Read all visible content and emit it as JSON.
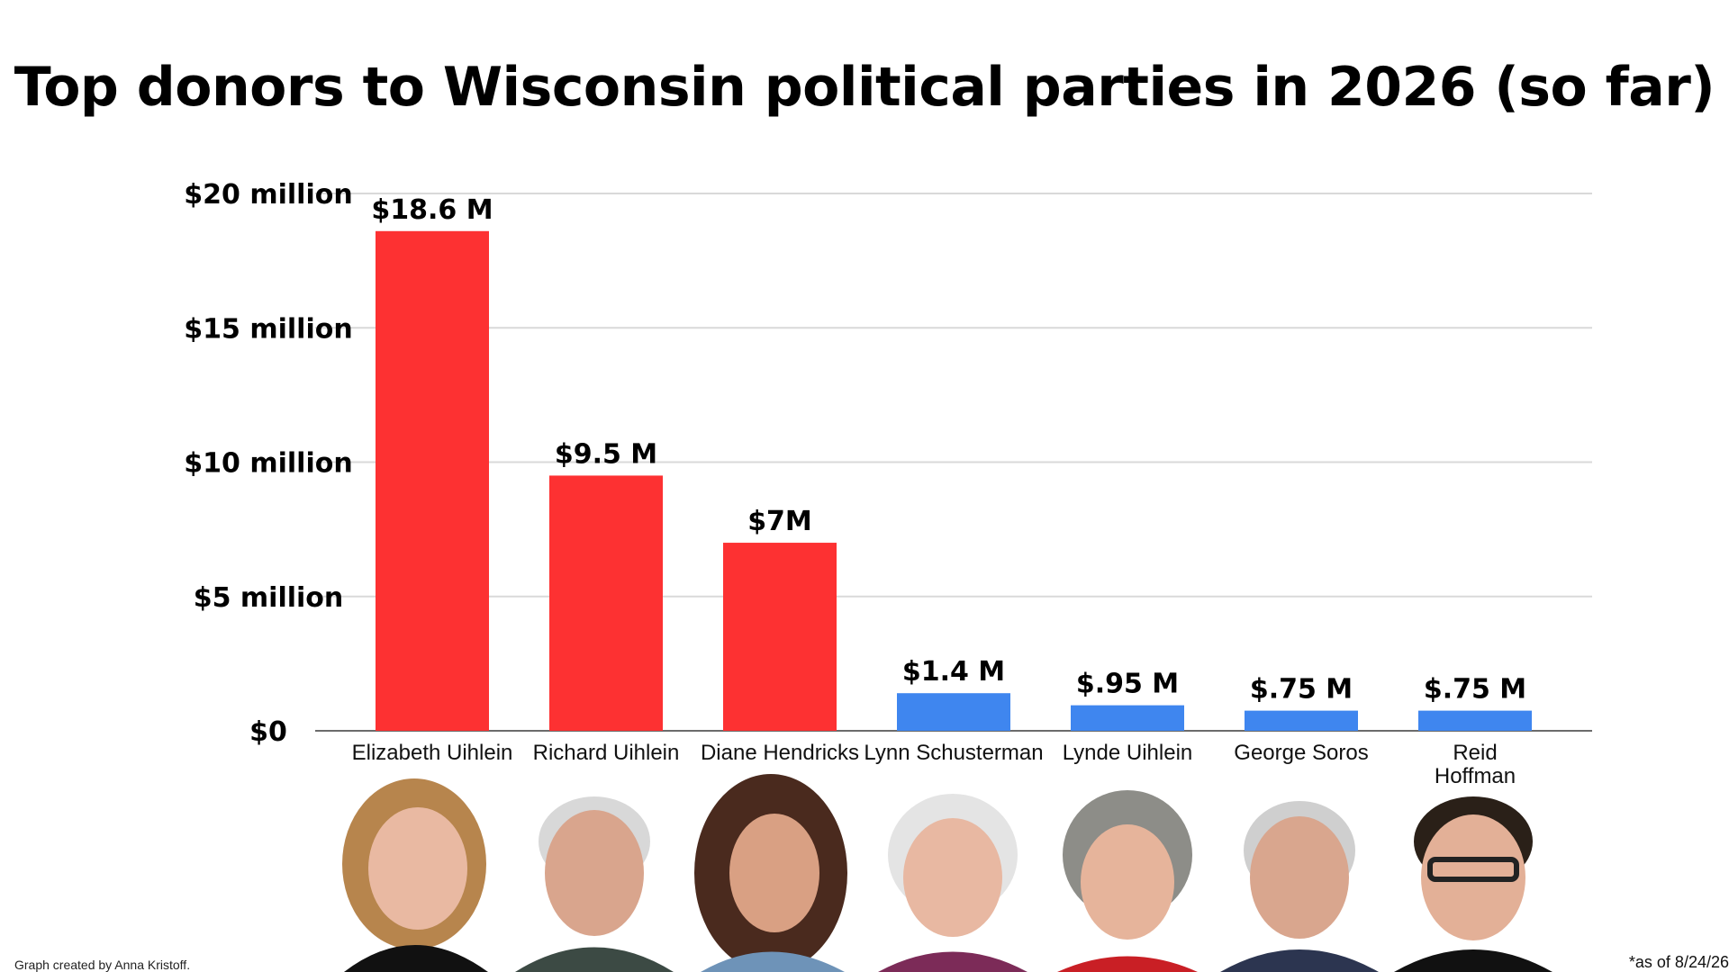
{
  "title": "Top donors to Wisconsin political parties in 2026 (so far)",
  "credit": "Graph created by Anna Kristoff.",
  "as_of": "*as of 8/24/26",
  "colors": {
    "republican": "#fd3132",
    "democrat": "#3f86ef",
    "grid": "#d9d9d9",
    "axis": "#6b6b6b"
  },
  "chart_data": {
    "type": "bar",
    "title": "Top donors to Wisconsin political parties in 2026 (so far)",
    "xlabel": "",
    "ylabel": "",
    "ylim": [
      0,
      20
    ],
    "grid": true,
    "yticks": [
      {
        "value": 0,
        "label": "$0"
      },
      {
        "value": 5,
        "label": "$5 million"
      },
      {
        "value": 10,
        "label": "$10 million"
      },
      {
        "value": 15,
        "label": "$15 million"
      },
      {
        "value": 20,
        "label": "$20 million"
      }
    ],
    "categories": [
      "Elizabeth Uihlein",
      "Richard Uihlein",
      "Diane Hendricks",
      "Lynn Schusterman",
      "Lynde Uihlein",
      "George Soros",
      "Reid Hoffman"
    ],
    "values": [
      18.6,
      9.5,
      7,
      1.4,
      0.95,
      0.75,
      0.75
    ],
    "data_labels": [
      "$18.6 M",
      "$9.5 M",
      "$7M",
      "$1.4 M",
      "$.95 M",
      "$.75 M",
      "$.75 M"
    ],
    "bar_colors": [
      "#fd3132",
      "#fd3132",
      "#fd3132",
      "#3f86ef",
      "#3f86ef",
      "#3f86ef",
      "#3f86ef"
    ]
  }
}
